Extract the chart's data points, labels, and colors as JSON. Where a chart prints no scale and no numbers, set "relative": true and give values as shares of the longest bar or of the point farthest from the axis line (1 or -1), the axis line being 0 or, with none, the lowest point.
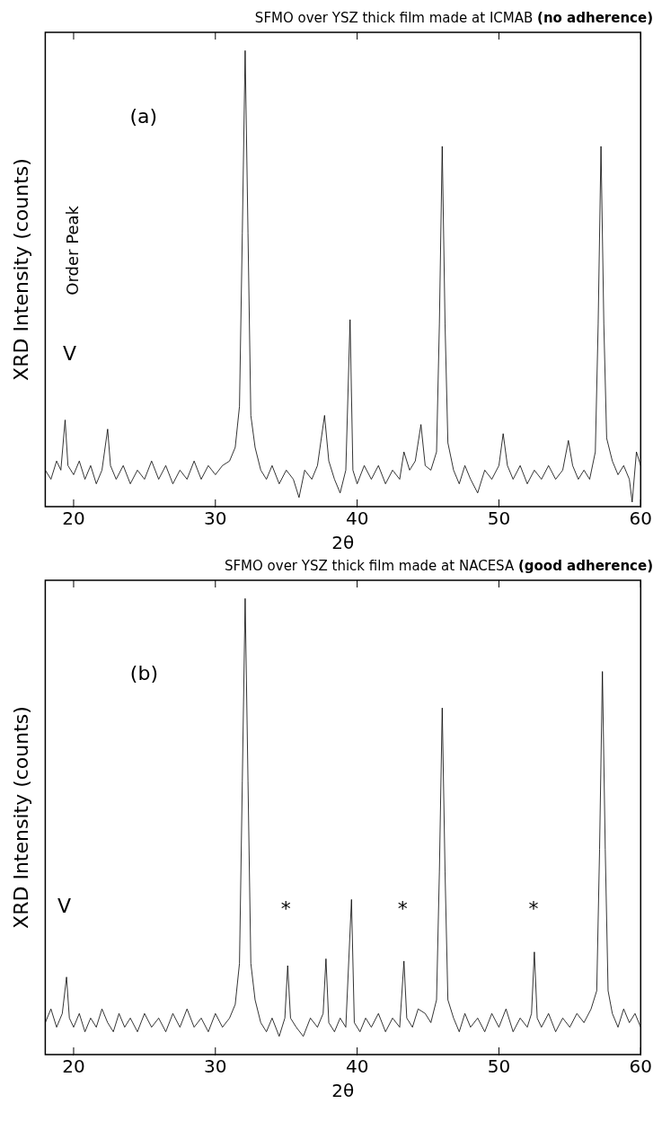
{
  "chart_data": [
    {
      "type": "line",
      "title": "SFMO over YSZ thick film made at ICMAB (no adherence)",
      "xlabel": "2θ",
      "ylabel": "XRD Intensity (counts)",
      "relative": true,
      "xlim": [
        18,
        60
      ],
      "xticks": [
        20,
        30,
        40,
        50,
        60
      ],
      "legend": false,
      "grid": false,
      "marker": "none",
      "line_style": "solid",
      "annotations": [
        "(a)",
        "Order Peak",
        "V"
      ],
      "series": [
        {
          "color": "#000000",
          "x": [
            18.0,
            18.4,
            18.8,
            19.1,
            19.4,
            19.6,
            20.0,
            20.4,
            20.8,
            21.2,
            21.6,
            22.0,
            22.4,
            22.6,
            23.0,
            23.5,
            24.0,
            24.5,
            25.0,
            25.5,
            26.0,
            26.5,
            27.0,
            27.5,
            28.0,
            28.5,
            29.0,
            29.5,
            30.0,
            30.5,
            31.0,
            31.4,
            31.7,
            31.9,
            32.1,
            32.3,
            32.5,
            32.8,
            33.2,
            33.6,
            34.0,
            34.5,
            35.0,
            35.5,
            35.9,
            36.3,
            36.8,
            37.2,
            37.7,
            38.0,
            38.4,
            38.8,
            39.2,
            39.5,
            39.7,
            40.0,
            40.5,
            41.0,
            41.5,
            42.0,
            42.5,
            43.0,
            43.3,
            43.7,
            44.1,
            44.5,
            44.8,
            45.2,
            45.6,
            45.8,
            46.0,
            46.2,
            46.4,
            46.8,
            47.2,
            47.6,
            48.0,
            48.5,
            49.0,
            49.5,
            50.0,
            50.3,
            50.6,
            51.0,
            51.5,
            52.0,
            52.5,
            53.0,
            53.5,
            54.0,
            54.5,
            54.9,
            55.2,
            55.6,
            56.0,
            56.4,
            56.8,
            57.0,
            57.2,
            57.4,
            57.6,
            58.0,
            58.4,
            58.8,
            59.2,
            59.4,
            59.7,
            60.0
          ],
          "values": [
            0.08,
            0.06,
            0.1,
            0.08,
            0.19,
            0.09,
            0.07,
            0.1,
            0.06,
            0.09,
            0.05,
            0.08,
            0.17,
            0.09,
            0.06,
            0.09,
            0.05,
            0.08,
            0.06,
            0.1,
            0.06,
            0.09,
            0.05,
            0.08,
            0.06,
            0.1,
            0.06,
            0.09,
            0.07,
            0.09,
            0.1,
            0.13,
            0.22,
            0.6,
            1.0,
            0.6,
            0.2,
            0.13,
            0.08,
            0.06,
            0.09,
            0.05,
            0.08,
            0.06,
            0.02,
            0.08,
            0.06,
            0.09,
            0.2,
            0.1,
            0.06,
            0.03,
            0.08,
            0.41,
            0.08,
            0.05,
            0.09,
            0.06,
            0.09,
            0.05,
            0.08,
            0.06,
            0.12,
            0.08,
            0.1,
            0.18,
            0.09,
            0.08,
            0.12,
            0.4,
            0.79,
            0.4,
            0.14,
            0.08,
            0.05,
            0.09,
            0.06,
            0.03,
            0.08,
            0.06,
            0.09,
            0.16,
            0.09,
            0.06,
            0.09,
            0.05,
            0.08,
            0.06,
            0.09,
            0.06,
            0.08,
            0.145,
            0.09,
            0.06,
            0.08,
            0.06,
            0.12,
            0.4,
            0.79,
            0.4,
            0.15,
            0.1,
            0.07,
            0.09,
            0.06,
            0.01,
            0.12,
            0.09
          ]
        }
      ]
    },
    {
      "type": "line",
      "title": "SFMO over YSZ thick film made at NACESA (good adherence)",
      "xlabel": "2θ",
      "ylabel": "XRD Intensity (counts)",
      "relative": true,
      "xlim": [
        18,
        60
      ],
      "xticks": [
        20,
        30,
        40,
        50,
        60
      ],
      "legend": false,
      "grid": false,
      "marker": "none",
      "line_style": "solid",
      "annotations": [
        "(b)",
        "V",
        "*",
        "*",
        "*"
      ],
      "series": [
        {
          "color": "#000000",
          "x": [
            18.0,
            18.4,
            18.8,
            19.2,
            19.5,
            19.7,
            20.0,
            20.4,
            20.8,
            21.2,
            21.6,
            22.0,
            22.4,
            22.8,
            23.2,
            23.6,
            24.0,
            24.5,
            25.0,
            25.5,
            26.0,
            26.5,
            27.0,
            27.5,
            28.0,
            28.5,
            29.0,
            29.5,
            30.0,
            30.5,
            31.0,
            31.4,
            31.7,
            31.9,
            32.1,
            32.3,
            32.5,
            32.8,
            33.2,
            33.6,
            34.0,
            34.5,
            34.9,
            35.1,
            35.3,
            35.7,
            36.2,
            36.7,
            37.2,
            37.6,
            37.8,
            38.0,
            38.4,
            38.8,
            39.2,
            39.6,
            39.8,
            40.2,
            40.6,
            41.0,
            41.5,
            42.0,
            42.5,
            43.0,
            43.3,
            43.5,
            43.9,
            44.3,
            44.8,
            45.2,
            45.6,
            45.8,
            46.0,
            46.2,
            46.4,
            46.8,
            47.2,
            47.6,
            48.0,
            48.5,
            49.0,
            49.5,
            50.0,
            50.5,
            51.0,
            51.5,
            52.0,
            52.3,
            52.5,
            52.7,
            53.0,
            53.5,
            54.0,
            54.5,
            55.0,
            55.5,
            56.0,
            56.5,
            56.9,
            57.1,
            57.3,
            57.5,
            57.7,
            58.0,
            58.4,
            58.8,
            59.2,
            59.6,
            60.0
          ],
          "values": [
            0.07,
            0.1,
            0.06,
            0.09,
            0.17,
            0.08,
            0.06,
            0.09,
            0.05,
            0.08,
            0.06,
            0.1,
            0.07,
            0.05,
            0.09,
            0.06,
            0.08,
            0.05,
            0.09,
            0.06,
            0.08,
            0.05,
            0.09,
            0.06,
            0.1,
            0.06,
            0.08,
            0.05,
            0.09,
            0.06,
            0.08,
            0.11,
            0.2,
            0.6,
            1.0,
            0.6,
            0.2,
            0.12,
            0.07,
            0.05,
            0.08,
            0.04,
            0.08,
            0.195,
            0.08,
            0.06,
            0.04,
            0.08,
            0.06,
            0.09,
            0.21,
            0.07,
            0.05,
            0.08,
            0.06,
            0.34,
            0.07,
            0.05,
            0.08,
            0.06,
            0.09,
            0.05,
            0.08,
            0.06,
            0.205,
            0.08,
            0.06,
            0.1,
            0.09,
            0.07,
            0.12,
            0.4,
            0.76,
            0.4,
            0.12,
            0.08,
            0.05,
            0.09,
            0.06,
            0.08,
            0.05,
            0.09,
            0.06,
            0.1,
            0.05,
            0.08,
            0.06,
            0.09,
            0.225,
            0.08,
            0.06,
            0.09,
            0.05,
            0.08,
            0.06,
            0.09,
            0.07,
            0.1,
            0.14,
            0.45,
            0.84,
            0.45,
            0.14,
            0.09,
            0.06,
            0.1,
            0.07,
            0.09,
            0.06
          ]
        }
      ]
    }
  ]
}
